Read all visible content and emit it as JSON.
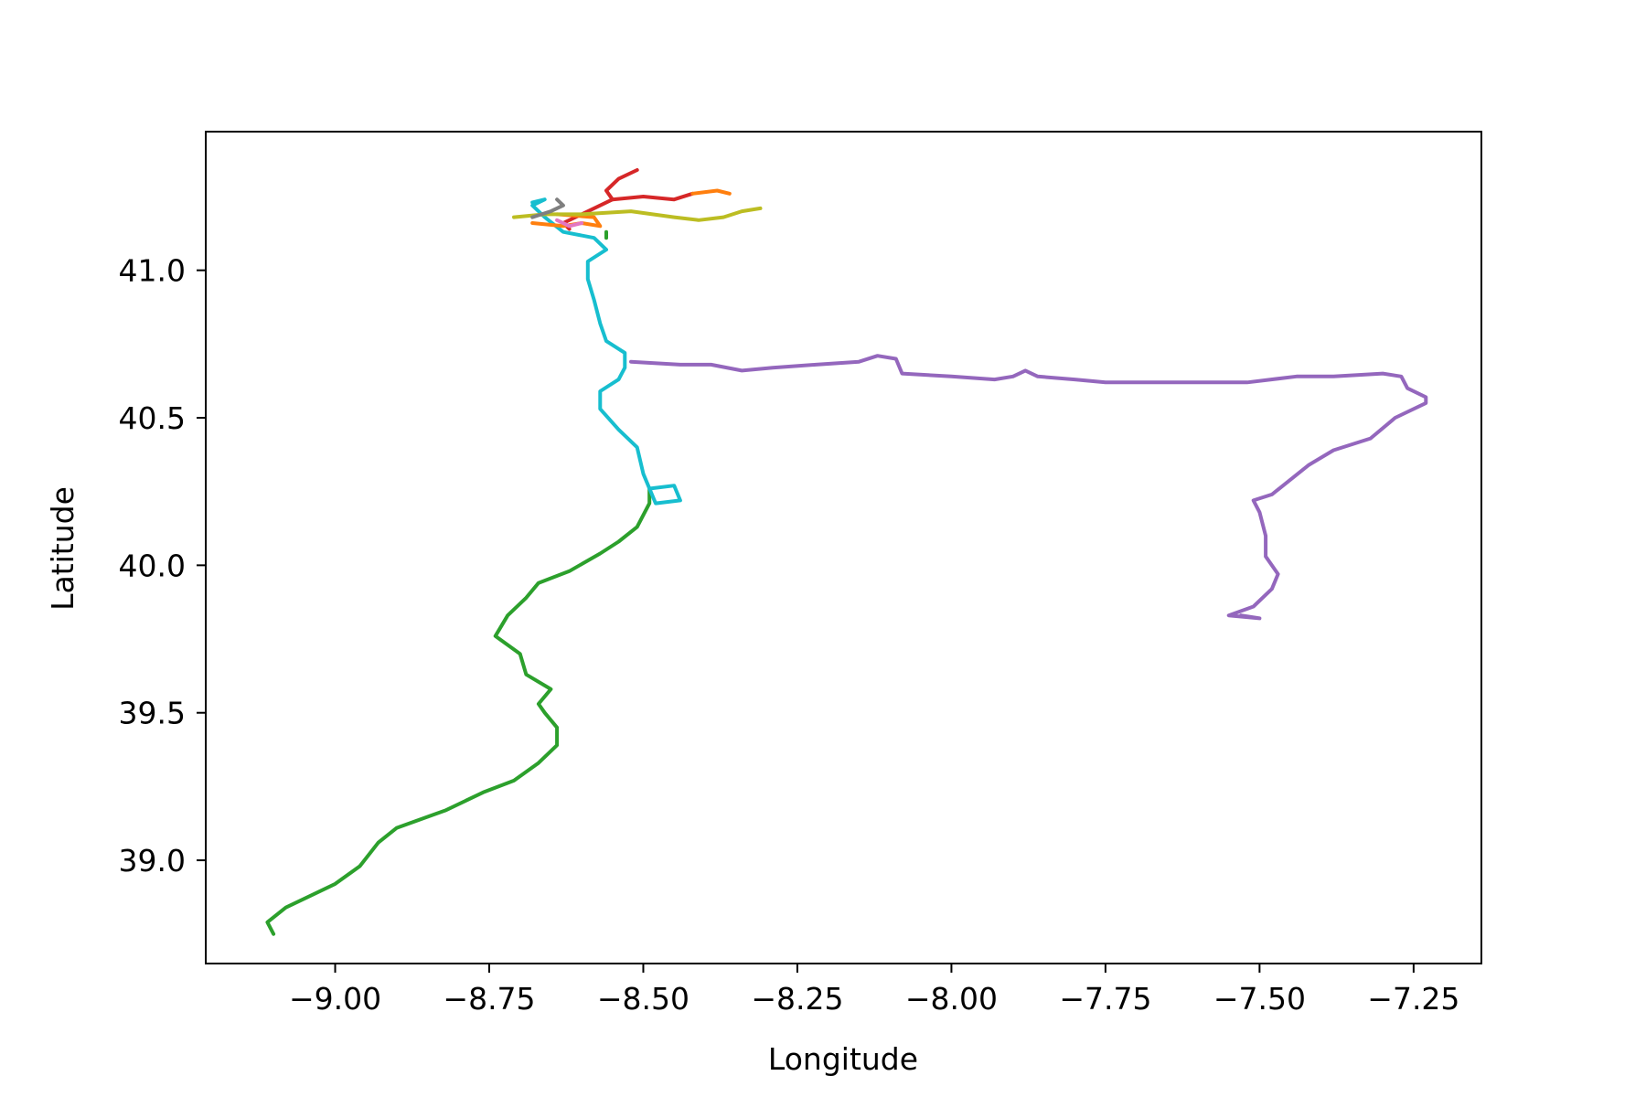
{
  "chart_data": {
    "type": "line",
    "xlabel": "Longitude",
    "ylabel": "Latitude",
    "xlim": [
      -9.21,
      -7.14
    ],
    "ylim": [
      38.65,
      41.47
    ],
    "xticks": [
      -9.0,
      -8.75,
      -8.5,
      -8.25,
      -8.0,
      -7.75,
      -7.5,
      -7.25
    ],
    "xtick_labels": [
      "−9.00",
      "−8.75",
      "−8.50",
      "−8.25",
      "−8.00",
      "−7.75",
      "−7.50",
      "−7.25"
    ],
    "yticks": [
      39.0,
      39.5,
      40.0,
      40.5,
      41.0
    ],
    "ytick_labels": [
      "39.0",
      "39.5",
      "40.0",
      "40.5",
      "41.0"
    ],
    "grid": false,
    "series": [
      {
        "color": "#2ca02c",
        "points": [
          [
            -9.1,
            38.75
          ],
          [
            -9.11,
            38.79
          ],
          [
            -9.08,
            38.84
          ],
          [
            -9.04,
            38.88
          ],
          [
            -9.0,
            38.92
          ],
          [
            -8.96,
            38.98
          ],
          [
            -8.93,
            39.06
          ],
          [
            -8.9,
            39.11
          ],
          [
            -8.82,
            39.17
          ],
          [
            -8.76,
            39.23
          ],
          [
            -8.71,
            39.27
          ],
          [
            -8.67,
            39.33
          ],
          [
            -8.64,
            39.39
          ],
          [
            -8.64,
            39.45
          ],
          [
            -8.66,
            39.5
          ],
          [
            -8.67,
            39.53
          ],
          [
            -8.65,
            39.58
          ],
          [
            -8.69,
            39.63
          ],
          [
            -8.7,
            39.7
          ],
          [
            -8.74,
            39.76
          ],
          [
            -8.72,
            39.83
          ],
          [
            -8.69,
            39.89
          ],
          [
            -8.67,
            39.94
          ],
          [
            -8.62,
            39.98
          ],
          [
            -8.57,
            40.04
          ],
          [
            -8.54,
            40.08
          ],
          [
            -8.51,
            40.13
          ],
          [
            -8.49,
            40.21
          ],
          [
            -8.49,
            40.26
          ]
        ]
      },
      {
        "color": "#2ca02c",
        "points": [
          [
            -8.56,
            41.11
          ],
          [
            -8.56,
            41.13
          ]
        ]
      },
      {
        "color": "#17becf",
        "points": [
          [
            -8.49,
            40.26
          ],
          [
            -8.45,
            40.27
          ],
          [
            -8.44,
            40.22
          ],
          [
            -8.48,
            40.21
          ],
          [
            -8.5,
            40.31
          ],
          [
            -8.51,
            40.4
          ],
          [
            -8.54,
            40.46
          ],
          [
            -8.57,
            40.53
          ],
          [
            -8.57,
            40.59
          ],
          [
            -8.54,
            40.63
          ],
          [
            -8.53,
            40.67
          ],
          [
            -8.53,
            40.72
          ],
          [
            -8.56,
            40.76
          ],
          [
            -8.57,
            40.82
          ],
          [
            -8.58,
            40.9
          ],
          [
            -8.59,
            40.97
          ],
          [
            -8.59,
            41.03
          ],
          [
            -8.56,
            41.07
          ],
          [
            -8.58,
            41.11
          ],
          [
            -8.63,
            41.13
          ],
          [
            -8.66,
            41.18
          ],
          [
            -8.68,
            41.22
          ],
          [
            -8.66,
            41.24
          ],
          [
            -8.68,
            41.23
          ]
        ]
      },
      {
        "color": "#9467bd",
        "points": [
          [
            -8.52,
            40.69
          ],
          [
            -8.44,
            40.68
          ],
          [
            -8.39,
            40.68
          ],
          [
            -8.34,
            40.66
          ],
          [
            -8.29,
            40.67
          ],
          [
            -8.22,
            40.68
          ],
          [
            -8.15,
            40.69
          ],
          [
            -8.12,
            40.71
          ],
          [
            -8.09,
            40.7
          ],
          [
            -8.08,
            40.65
          ],
          [
            -8.0,
            40.64
          ],
          [
            -7.93,
            40.63
          ],
          [
            -7.9,
            40.64
          ],
          [
            -7.88,
            40.66
          ],
          [
            -7.86,
            40.64
          ],
          [
            -7.8,
            40.63
          ],
          [
            -7.75,
            40.62
          ],
          [
            -7.65,
            40.62
          ],
          [
            -7.58,
            40.62
          ],
          [
            -7.52,
            40.62
          ],
          [
            -7.44,
            40.64
          ],
          [
            -7.38,
            40.64
          ],
          [
            -7.3,
            40.65
          ],
          [
            -7.27,
            40.64
          ],
          [
            -7.26,
            40.6
          ],
          [
            -7.23,
            40.57
          ],
          [
            -7.23,
            40.55
          ],
          [
            -7.28,
            40.5
          ],
          [
            -7.32,
            40.43
          ],
          [
            -7.38,
            40.39
          ],
          [
            -7.42,
            40.34
          ],
          [
            -7.48,
            40.24
          ],
          [
            -7.51,
            40.22
          ],
          [
            -7.5,
            40.18
          ],
          [
            -7.49,
            40.1
          ],
          [
            -7.49,
            40.03
          ],
          [
            -7.47,
            39.97
          ],
          [
            -7.48,
            39.92
          ],
          [
            -7.51,
            39.86
          ],
          [
            -7.55,
            39.83
          ],
          [
            -7.5,
            39.82
          ],
          [
            -7.53,
            39.83
          ]
        ]
      },
      {
        "color": "#d62728",
        "points": [
          [
            -8.51,
            41.34
          ],
          [
            -8.54,
            41.31
          ],
          [
            -8.56,
            41.27
          ],
          [
            -8.55,
            41.24
          ],
          [
            -8.6,
            41.19
          ],
          [
            -8.63,
            41.16
          ],
          [
            -8.62,
            41.14
          ]
        ]
      },
      {
        "color": "#d62728",
        "points": [
          [
            -8.55,
            41.24
          ],
          [
            -8.5,
            41.25
          ],
          [
            -8.45,
            41.24
          ],
          [
            -8.42,
            41.26
          ]
        ]
      },
      {
        "color": "#ff7f0e",
        "points": [
          [
            -8.42,
            41.26
          ],
          [
            -8.38,
            41.27
          ],
          [
            -8.36,
            41.26
          ]
        ]
      },
      {
        "color": "#ff7f0e",
        "points": [
          [
            -8.68,
            41.16
          ],
          [
            -8.63,
            41.15
          ],
          [
            -8.6,
            41.16
          ],
          [
            -8.57,
            41.15
          ],
          [
            -8.58,
            41.18
          ],
          [
            -8.64,
            41.19
          ]
        ]
      },
      {
        "color": "#bcbd22",
        "points": [
          [
            -8.71,
            41.18
          ],
          [
            -8.66,
            41.19
          ],
          [
            -8.6,
            41.19
          ],
          [
            -8.52,
            41.2
          ],
          [
            -8.45,
            41.18
          ],
          [
            -8.41,
            41.17
          ],
          [
            -8.37,
            41.18
          ],
          [
            -8.34,
            41.2
          ],
          [
            -8.31,
            41.21
          ]
        ]
      },
      {
        "color": "#7f7f7f",
        "points": [
          [
            -8.64,
            41.24
          ],
          [
            -8.63,
            41.22
          ],
          [
            -8.65,
            41.2
          ],
          [
            -8.68,
            41.18
          ]
        ]
      },
      {
        "color": "#e377c2",
        "points": [
          [
            -8.64,
            41.17
          ],
          [
            -8.62,
            41.15
          ],
          [
            -8.6,
            41.16
          ]
        ]
      }
    ]
  }
}
